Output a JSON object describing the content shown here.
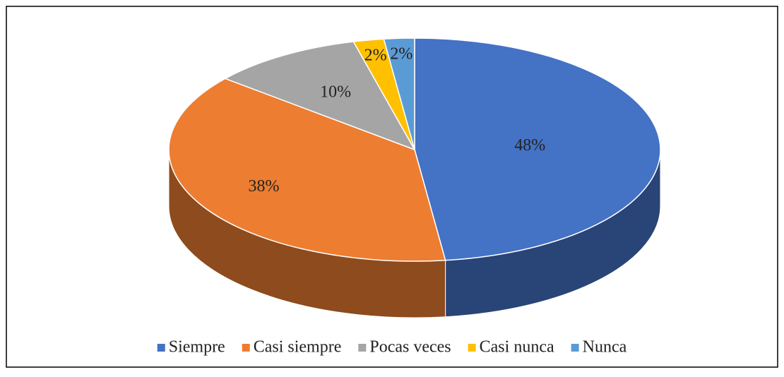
{
  "chart_data": {
    "type": "pie",
    "categories": [
      "Siempre",
      "Casi siempre",
      "Pocas veces",
      "Casi nunca",
      "Nunca"
    ],
    "values": [
      48,
      38,
      10,
      2,
      2
    ],
    "value_labels": [
      "48%",
      "38%",
      "10%",
      "2%",
      "2%"
    ],
    "colors": [
      "#4472c4",
      "#ed7d31",
      "#a5a5a5",
      "#ffc000",
      "#5b9bd5"
    ],
    "legend": "bottom"
  }
}
